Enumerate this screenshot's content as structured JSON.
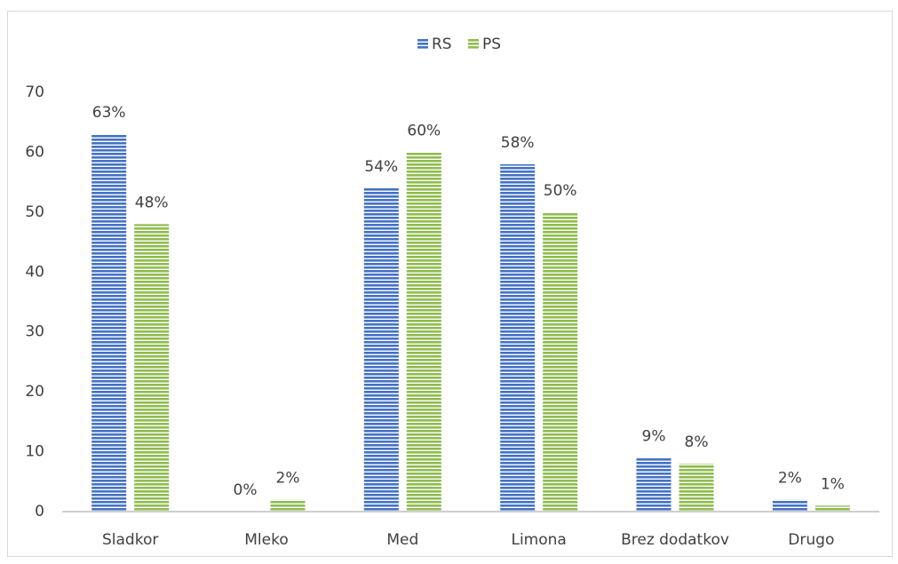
{
  "chart_data": {
    "type": "bar",
    "categories": [
      "Sladkor",
      "Mleko",
      "Med",
      "Limona",
      "Brez dodatkov",
      "Drugo"
    ],
    "series": [
      {
        "name": "RS",
        "color": "#4472c4",
        "values": [
          63,
          0,
          54,
          58,
          9,
          2
        ],
        "value_labels": [
          "63%",
          "0%",
          "54%",
          "58%",
          "9%",
          "2%"
        ]
      },
      {
        "name": "PS",
        "color": "#8fbc4f",
        "values": [
          48,
          2,
          60,
          50,
          8,
          1
        ],
        "value_labels": [
          "48%",
          "2%",
          "60%",
          "50%",
          "8%",
          "1%"
        ]
      }
    ],
    "ylim": [
      0,
      70
    ],
    "yticks": [
      0,
      10,
      20,
      30,
      40,
      50,
      60,
      70
    ],
    "grid": false,
    "legend": "top"
  }
}
